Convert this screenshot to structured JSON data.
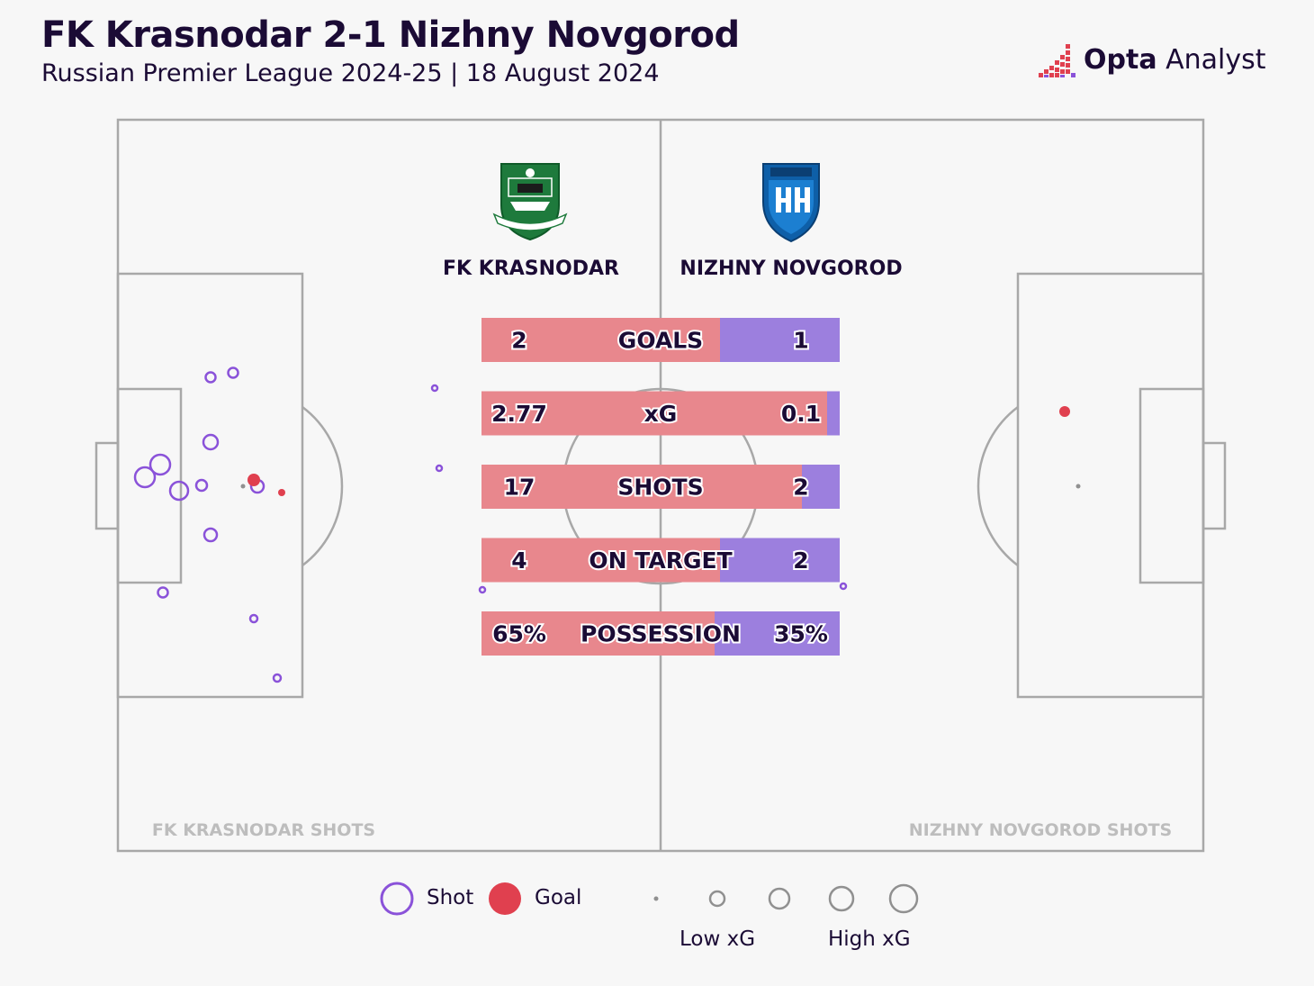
{
  "header": {
    "title": "FK Krasnodar 2-1 Nizhny Novgorod",
    "subtitle": "Russian Premier League 2024-25 | 18 August 2024",
    "brand_bold": "Opta",
    "brand_light": " Analyst"
  },
  "colors": {
    "home": "#e8878d",
    "away": "#9c7fde",
    "shot_stroke": "#8a52d9",
    "goal": "#e0404f",
    "pitch_line": "#a8a8a8",
    "zone_label": "#bdbdbd"
  },
  "teams": {
    "home": {
      "name": "FK KRASNODAR",
      "crest": "krasnodar-crest-icon"
    },
    "away": {
      "name": "NIZHNY NOVGOROD",
      "crest": "nizhny-novgorod-crest-icon"
    }
  },
  "zones": {
    "home_label": "FK KRASNODAR SHOTS",
    "away_label": "NIZHNY NOVGOROD SHOTS"
  },
  "legend": {
    "shot": "Shot",
    "goal": "Goal",
    "low": "Low xG",
    "high": "High xG"
  },
  "chart_data": {
    "type": "table",
    "stats": [
      {
        "label": "GOALS",
        "home": "2",
        "away": "1",
        "home_share": 0.667
      },
      {
        "label": "xG",
        "home": "2.77",
        "away": "0.1",
        "home_share": 0.965
      },
      {
        "label": "SHOTS",
        "home": "17",
        "away": "2",
        "home_share": 0.895
      },
      {
        "label": "ON TARGET",
        "home": "4",
        "away": "2",
        "home_share": 0.667
      },
      {
        "label": "POSSESSION",
        "home": "65%",
        "away": "35%",
        "home_share": 0.65
      }
    ]
  }
}
